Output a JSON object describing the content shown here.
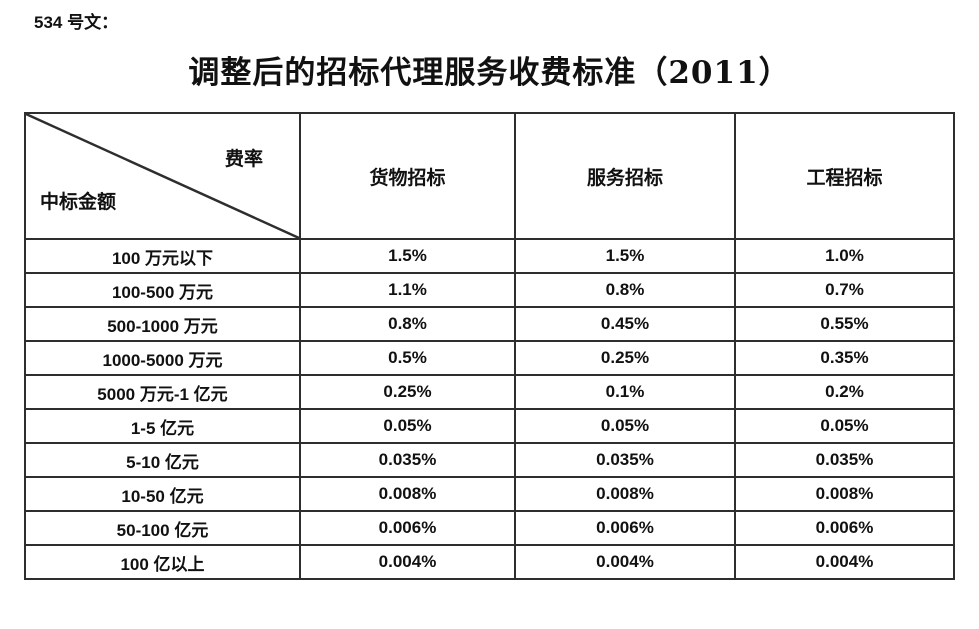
{
  "doc_label": "534 号文：",
  "title": "调整后的招标代理服务收费标准（2011）",
  "table": {
    "corner": {
      "top_right": "费率",
      "bottom_left": "中标金额"
    },
    "columns": [
      "货物招标",
      "服务招标",
      "工程招标"
    ],
    "rows": [
      {
        "label": "100 万元以下",
        "values": [
          "1.5%",
          "1.5%",
          "1.0%"
        ]
      },
      {
        "label": "100-500 万元",
        "values": [
          "1.1%",
          "0.8%",
          "0.7%"
        ]
      },
      {
        "label": "500-1000 万元",
        "values": [
          "0.8%",
          "0.45%",
          "0.55%"
        ]
      },
      {
        "label": "1000-5000 万元",
        "values": [
          "0.5%",
          "0.25%",
          "0.35%"
        ]
      },
      {
        "label": "5000 万元-1 亿元",
        "values": [
          "0.25%",
          "0.1%",
          "0.2%"
        ]
      },
      {
        "label": "1-5 亿元",
        "values": [
          "0.05%",
          "0.05%",
          "0.05%"
        ]
      },
      {
        "label": "5-10 亿元",
        "values": [
          "0.035%",
          "0.035%",
          "0.035%"
        ]
      },
      {
        "label": "10-50 亿元",
        "values": [
          "0.008%",
          "0.008%",
          "0.008%"
        ]
      },
      {
        "label": "50-100 亿元",
        "values": [
          "0.006%",
          "0.006%",
          "0.006%"
        ]
      },
      {
        "label": "100 亿以上",
        "values": [
          "0.004%",
          "0.004%",
          "0.004%"
        ]
      }
    ],
    "colors": {
      "border": "#2e2e2e",
      "text": "#111111",
      "background": "#ffffff"
    }
  }
}
